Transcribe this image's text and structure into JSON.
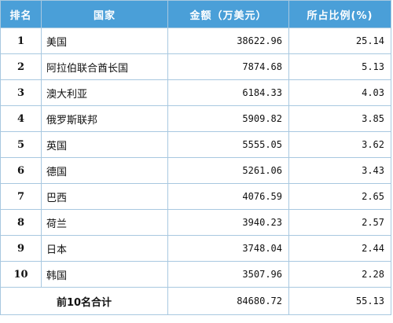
{
  "table": {
    "headers": [
      "排名",
      "国家",
      "金额（万美元）",
      "所占比例(%)"
    ],
    "rows": [
      {
        "rank": "1",
        "country": "美国",
        "amount": "38622.96",
        "pct": "25.14"
      },
      {
        "rank": "2",
        "country": "阿拉伯联合酋长国",
        "amount": "7874.68",
        "pct": "5.13"
      },
      {
        "rank": "3",
        "country": "澳大利亚",
        "amount": "6184.33",
        "pct": "4.03"
      },
      {
        "rank": "4",
        "country": "俄罗斯联邦",
        "amount": "5909.82",
        "pct": "3.85"
      },
      {
        "rank": "5",
        "country": "英国",
        "amount": "5555.05",
        "pct": "3.62"
      },
      {
        "rank": "6",
        "country": "德国",
        "amount": "5261.06",
        "pct": "3.43"
      },
      {
        "rank": "7",
        "country": "巴西",
        "amount": "4076.59",
        "pct": "2.65"
      },
      {
        "rank": "8",
        "country": "荷兰",
        "amount": "3940.23",
        "pct": "2.57"
      },
      {
        "rank": "9",
        "country": "日本",
        "amount": "3748.04",
        "pct": "2.44"
      },
      {
        "rank": "10",
        "country": "韩国",
        "amount": "3507.96",
        "pct": "2.28"
      }
    ],
    "total": {
      "label": "前10名合计",
      "amount": "84680.72",
      "pct": "55.13"
    }
  },
  "colors": {
    "header_bg": "#4a9fd8",
    "header_text": "#ffffff",
    "border": "#a8c8e0"
  }
}
